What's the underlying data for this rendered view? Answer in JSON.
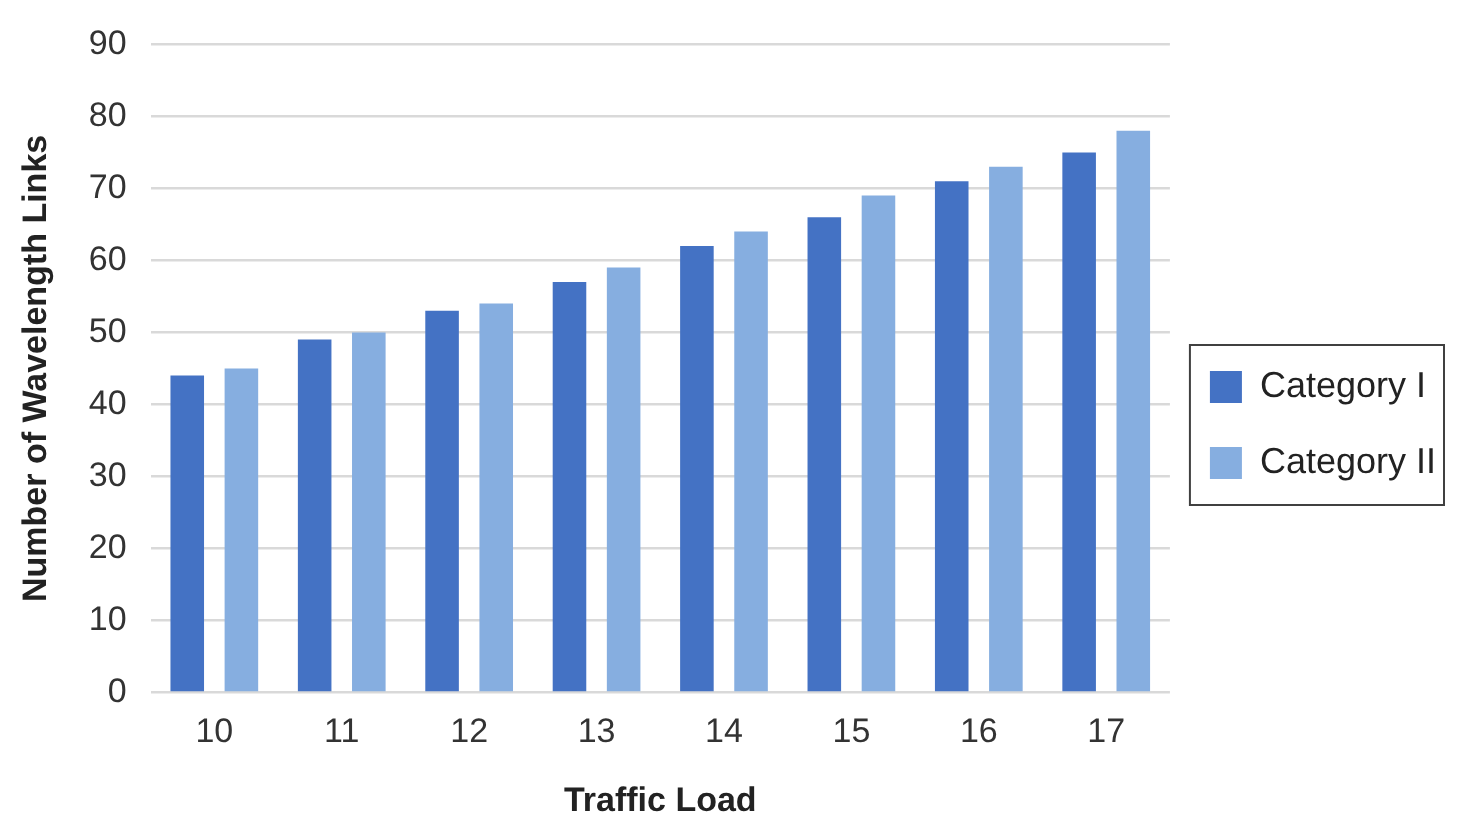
{
  "chart_data": {
    "type": "bar",
    "xlabel": "Traffic Load",
    "ylabel": "Number of Wavelength Links",
    "categories": [
      "10",
      "11",
      "12",
      "13",
      "14",
      "15",
      "16",
      "17"
    ],
    "series": [
      {
        "name": "Category I",
        "color": "#4472c4",
        "values": [
          44,
          49,
          53,
          57,
          62,
          66,
          71,
          75
        ]
      },
      {
        "name": "Category II",
        "color": "#86aee0",
        "values": [
          45,
          50,
          54,
          59,
          64,
          69,
          73,
          78
        ]
      }
    ],
    "ylim": [
      0,
      90
    ],
    "yticks": [
      0,
      10,
      20,
      30,
      40,
      50,
      60,
      70,
      80,
      90
    ],
    "grid": "y",
    "legend": "right"
  }
}
